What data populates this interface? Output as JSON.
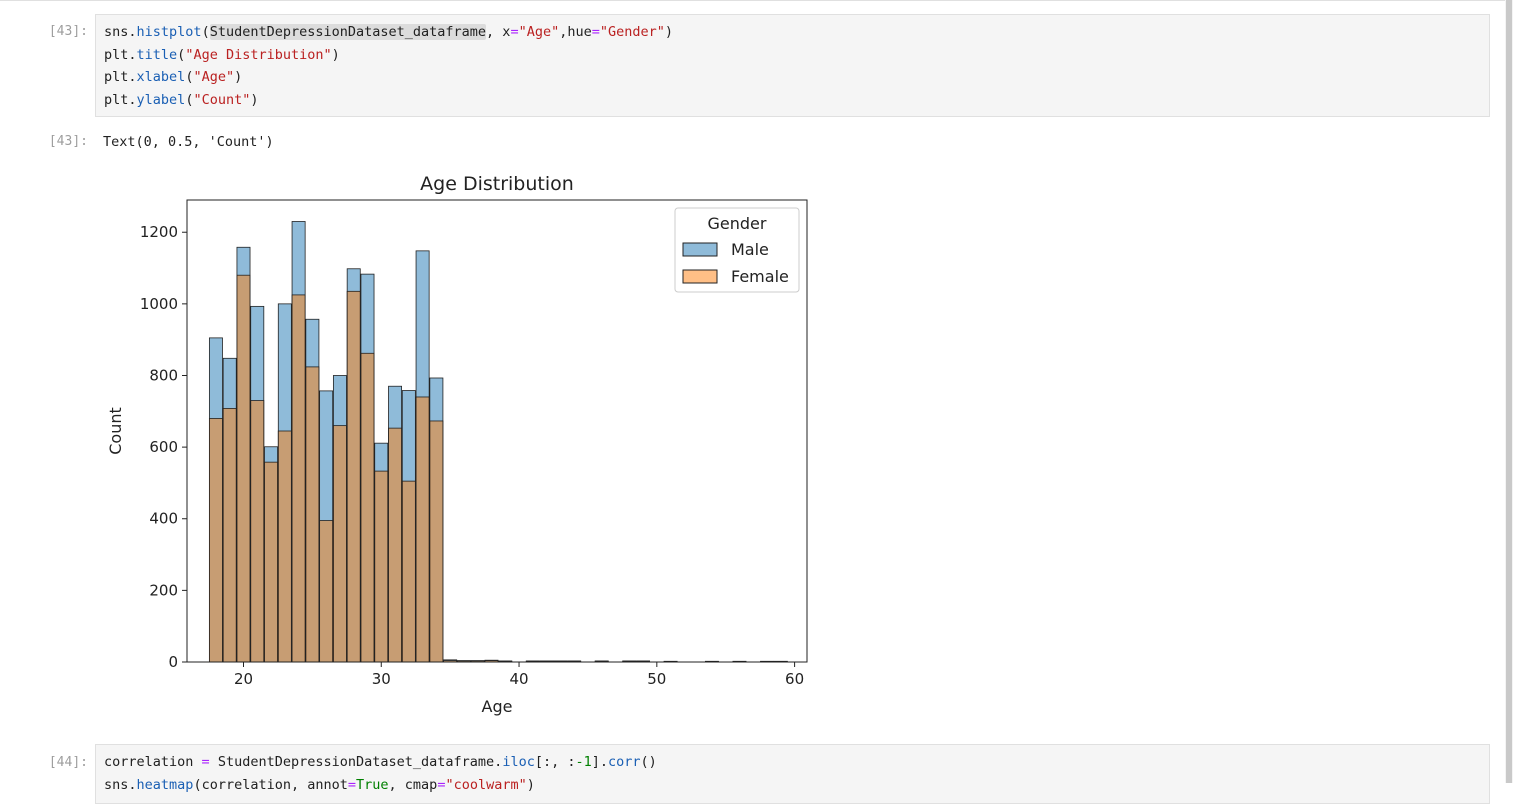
{
  "cells": [
    {
      "prompt": "[43]:",
      "lines": [
        [
          {
            "t": "sns",
            "c": "var"
          },
          {
            "t": ".",
            "c": "var"
          },
          {
            "t": "histplot",
            "c": "attr"
          },
          {
            "t": "(",
            "c": "var"
          },
          {
            "t": "StudentDepressionDataset_dataframe",
            "c": "hl"
          },
          {
            "t": ", x",
            "c": "var"
          },
          {
            "t": "=",
            "c": "op"
          },
          {
            "t": "\"Age\"",
            "c": "str"
          },
          {
            "t": ",hue",
            "c": "var"
          },
          {
            "t": "=",
            "c": "op"
          },
          {
            "t": "\"Gender\"",
            "c": "str"
          },
          {
            "t": ")",
            "c": "var"
          }
        ],
        [
          {
            "t": "plt",
            "c": "var"
          },
          {
            "t": ".",
            "c": "var"
          },
          {
            "t": "title",
            "c": "attr"
          },
          {
            "t": "(",
            "c": "var"
          },
          {
            "t": "\"Age Distribution\"",
            "c": "str"
          },
          {
            "t": ")",
            "c": "var"
          }
        ],
        [
          {
            "t": "plt",
            "c": "var"
          },
          {
            "t": ".",
            "c": "var"
          },
          {
            "t": "xlabel",
            "c": "attr"
          },
          {
            "t": "(",
            "c": "var"
          },
          {
            "t": "\"Age\"",
            "c": "str"
          },
          {
            "t": ")",
            "c": "var"
          }
        ],
        [
          {
            "t": "plt",
            "c": "var"
          },
          {
            "t": ".",
            "c": "var"
          },
          {
            "t": "ylabel",
            "c": "attr"
          },
          {
            "t": "(",
            "c": "var"
          },
          {
            "t": "\"Count\"",
            "c": "str"
          },
          {
            "t": ")",
            "c": "var"
          }
        ]
      ],
      "output_prompt": "[43]:",
      "output_text": "Text(0, 0.5, 'Count')"
    },
    {
      "prompt": "[44]:",
      "lines": [
        [
          {
            "t": "correlation ",
            "c": "var"
          },
          {
            "t": "=",
            "c": "op"
          },
          {
            "t": " StudentDepressionDataset_dataframe",
            "c": "var"
          },
          {
            "t": ".",
            "c": "var"
          },
          {
            "t": "iloc",
            "c": "attr"
          },
          {
            "t": "[:, :",
            "c": "var"
          },
          {
            "t": "-1",
            "c": "num"
          },
          {
            "t": "]",
            "c": "var"
          },
          {
            "t": ".",
            "c": "var"
          },
          {
            "t": "corr",
            "c": "attr"
          },
          {
            "t": "()",
            "c": "var"
          }
        ],
        [
          {
            "t": "sns",
            "c": "var"
          },
          {
            "t": ".",
            "c": "var"
          },
          {
            "t": "heatmap",
            "c": "attr"
          },
          {
            "t": "(correlation, annot",
            "c": "var"
          },
          {
            "t": "=",
            "c": "op"
          },
          {
            "t": "True",
            "c": "num"
          },
          {
            "t": ", cmap",
            "c": "var"
          },
          {
            "t": "=",
            "c": "op"
          },
          {
            "t": "\"coolwarm\"",
            "c": "str"
          },
          {
            "t": ")",
            "c": "var"
          }
        ]
      ]
    }
  ],
  "chart_data": {
    "type": "bar",
    "title": "Age Distribution",
    "xlabel": "Age",
    "ylabel": "Count",
    "xlim": [
      15.9,
      60.9
    ],
    "ylim": [
      0,
      1290
    ],
    "xticks": [
      20,
      30,
      40,
      50,
      60
    ],
    "yticks": [
      0,
      200,
      400,
      600,
      800,
      1000,
      1200
    ],
    "bin_width": 0.95,
    "legend": {
      "title": "Gender",
      "placement": "top-right"
    },
    "series": [
      {
        "name": "Male",
        "color": "#1f77b4",
        "x": [
          18,
          19,
          20,
          21,
          22,
          23,
          24,
          25,
          26,
          27,
          28,
          29,
          30,
          31,
          32,
          33,
          34,
          35,
          36,
          37,
          38,
          39,
          41,
          42,
          43,
          44,
          46,
          48,
          49,
          51,
          54,
          56,
          58,
          59
        ],
        "values": [
          905,
          848,
          1158,
          993,
          601,
          1000,
          1230,
          957,
          757,
          800,
          1098,
          1083,
          611,
          770,
          758,
          1148,
          793,
          6,
          4,
          4,
          5,
          3,
          3,
          3,
          3,
          3,
          3,
          3,
          3,
          2,
          2,
          2,
          2,
          2
        ]
      },
      {
        "name": "Female",
        "color": "#ff7f0e",
        "x": [
          18,
          19,
          20,
          21,
          22,
          23,
          24,
          25,
          26,
          27,
          28,
          29,
          30,
          31,
          32,
          33,
          34,
          35,
          36,
          37,
          38,
          39,
          41,
          42,
          43,
          44,
          46,
          48,
          49,
          51,
          54,
          56,
          58,
          59
        ],
        "values": [
          680,
          708,
          1080,
          730,
          558,
          645,
          1025,
          824,
          395,
          660,
          1035,
          862,
          533,
          653,
          505,
          740,
          673,
          4,
          3,
          3,
          4,
          2,
          2,
          2,
          2,
          2,
          2,
          2,
          2,
          1,
          1,
          1,
          1,
          1
        ]
      }
    ]
  }
}
